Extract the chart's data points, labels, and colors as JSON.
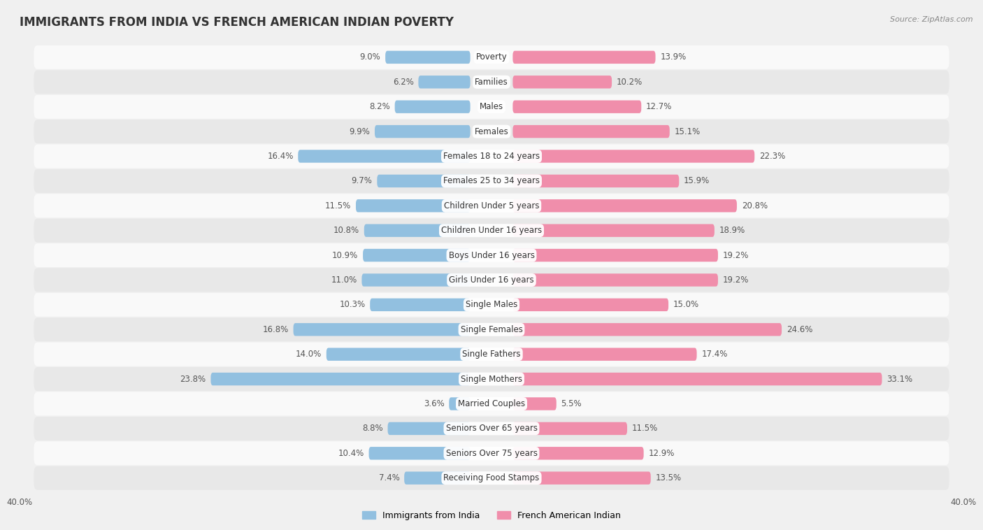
{
  "title": "IMMIGRANTS FROM INDIA VS FRENCH AMERICAN INDIAN POVERTY",
  "source": "Source: ZipAtlas.com",
  "categories": [
    "Poverty",
    "Families",
    "Males",
    "Females",
    "Females 18 to 24 years",
    "Females 25 to 34 years",
    "Children Under 5 years",
    "Children Under 16 years",
    "Boys Under 16 years",
    "Girls Under 16 years",
    "Single Males",
    "Single Females",
    "Single Fathers",
    "Single Mothers",
    "Married Couples",
    "Seniors Over 65 years",
    "Seniors Over 75 years",
    "Receiving Food Stamps"
  ],
  "india_values": [
    9.0,
    6.2,
    8.2,
    9.9,
    16.4,
    9.7,
    11.5,
    10.8,
    10.9,
    11.0,
    10.3,
    16.8,
    14.0,
    23.8,
    3.6,
    8.8,
    10.4,
    7.4
  ],
  "french_values": [
    13.9,
    10.2,
    12.7,
    15.1,
    22.3,
    15.9,
    20.8,
    18.9,
    19.2,
    19.2,
    15.0,
    24.6,
    17.4,
    33.1,
    5.5,
    11.5,
    12.9,
    13.5
  ],
  "india_color": "#92c0e0",
  "french_color": "#f08eab",
  "india_label": "Immigrants from India",
  "french_label": "French American Indian",
  "xlim": 40.0,
  "bar_height": 0.52,
  "background_color": "#f0f0f0",
  "row_light_color": "#f9f9f9",
  "row_dark_color": "#e8e8e8",
  "title_fontsize": 12,
  "label_fontsize": 8.5,
  "value_fontsize": 8.5,
  "legend_fontsize": 9,
  "cat_label_fontsize": 8.5
}
